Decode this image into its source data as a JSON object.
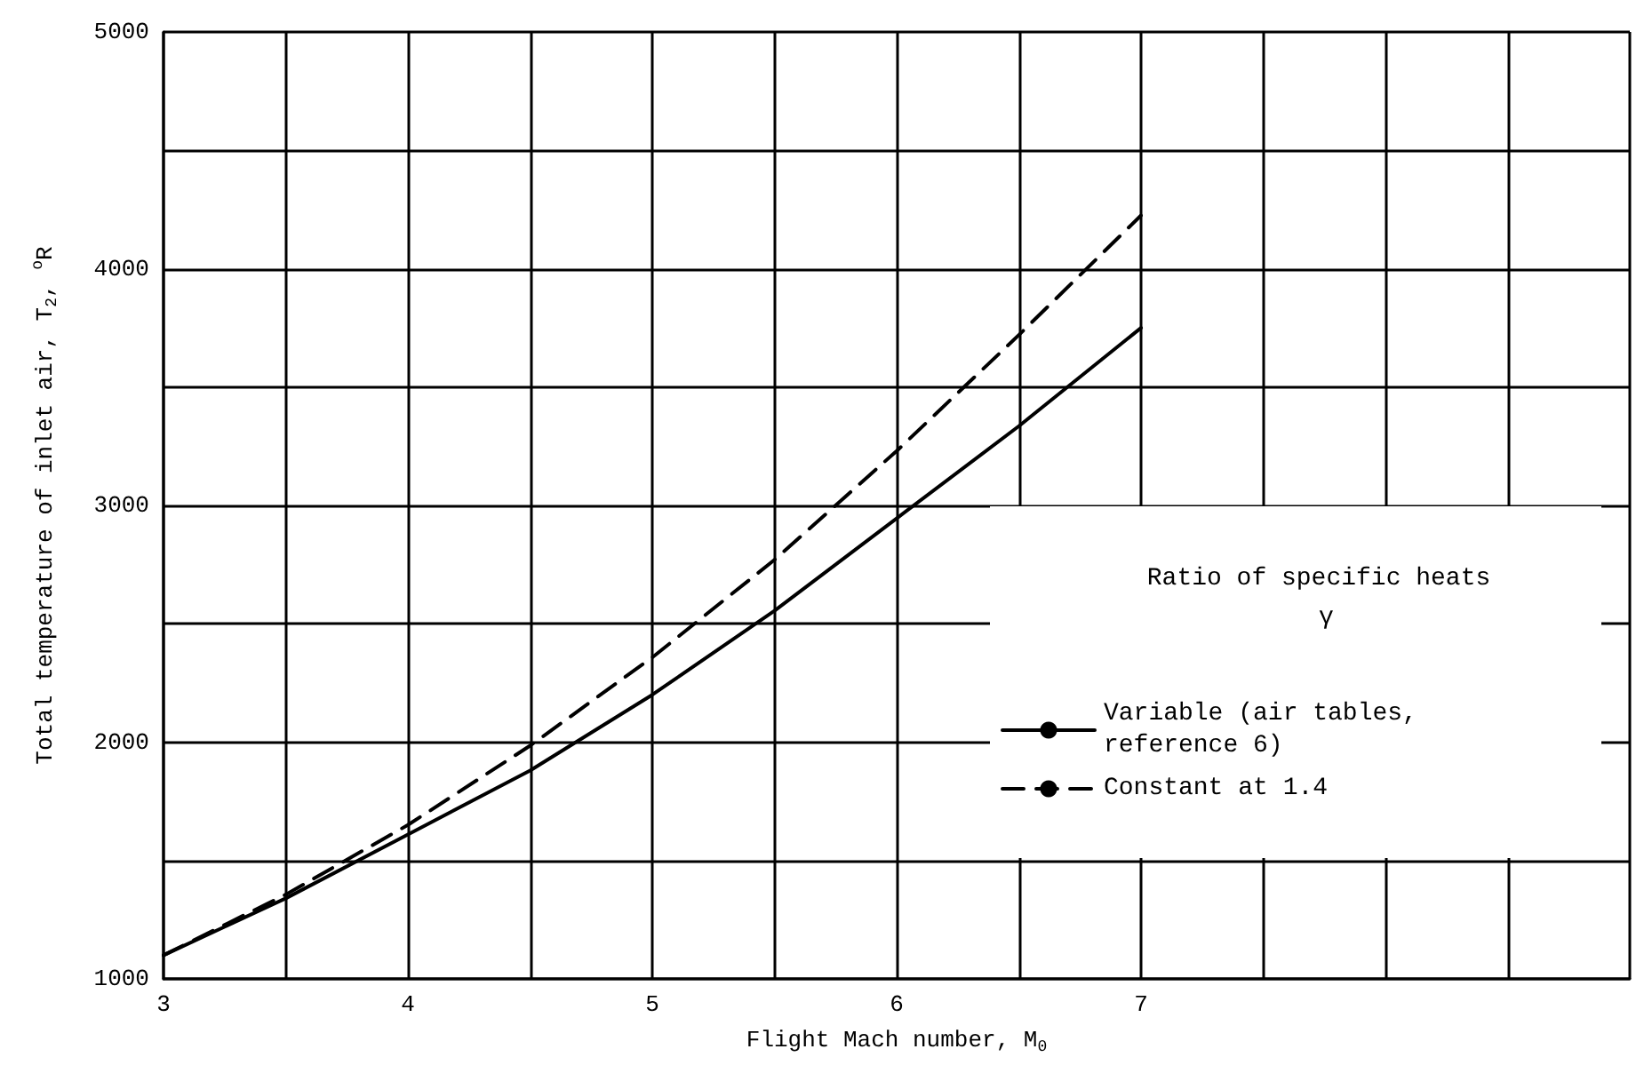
{
  "chart_data": {
    "type": "line",
    "xlabel": "Flight Mach number, M$_{0}$",
    "ylabel": "Total temperature of inlet air, T$_{2}$, $^{o}$R",
    "legend_title": "Ratio of specific heats γ",
    "x": [
      3,
      3.5,
      4,
      4.5,
      5,
      5.5,
      6,
      6.5,
      7
    ],
    "series": [
      {
        "name": "Variable (air tables, reference 6)",
        "color": "#000000",
        "line_style": "solid",
        "values": [
          1100,
          1340,
          1610,
          1880,
          2200,
          2555,
          2945,
          3335,
          3750
        ]
      },
      {
        "name": "Constant at 1.4",
        "color": "#000000",
        "line_style": "dashed",
        "values": [
          1100,
          1356,
          1650,
          1985,
          2358,
          2770,
          3230,
          3720,
          4225
        ]
      }
    ],
    "xlim": [
      3,
      9
    ],
    "xticks": [
      3,
      {
        "value": 3.5,
        "label": null
      },
      4,
      {
        "value": 4.5,
        "label": null
      },
      5,
      {
        "value": 5.5,
        "label": null
      },
      6,
      {
        "value": 6.5,
        "label": null
      },
      7,
      {
        "value": 7.5,
        "label": null
      },
      {
        "value": 8,
        "label": null
      },
      {
        "value": 8.5,
        "label": null
      },
      {
        "value": 9,
        "label": null
      }
    ],
    "ylim": [
      1000,
      5000
    ],
    "yticks": [
      1000,
      {
        "value": 1500,
        "label": null
      },
      2000,
      {
        "value": 2500,
        "label": null
      },
      3000,
      {
        "value": 3500,
        "label": null
      },
      4000,
      {
        "value": 4500,
        "label": null
      },
      5000
    ],
    "grid": true,
    "legend": "bottom right",
    "marker": "none"
  }
}
